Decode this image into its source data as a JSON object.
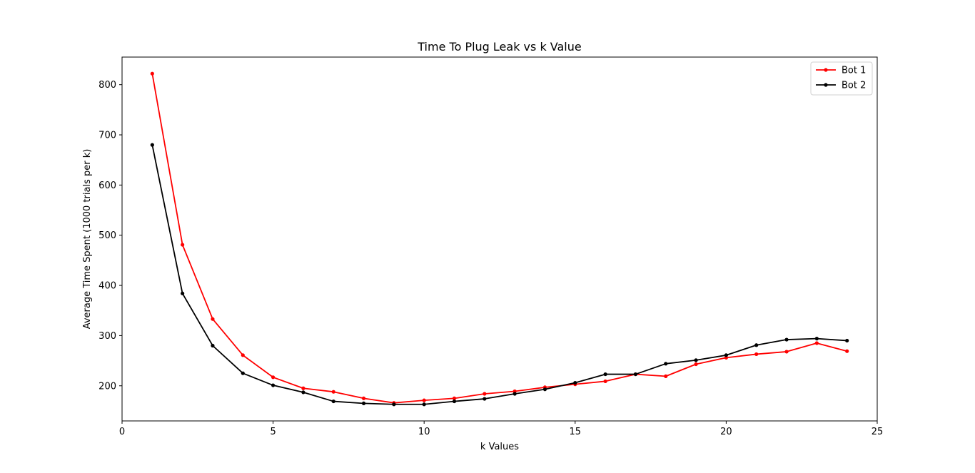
{
  "chart_data": {
    "type": "line",
    "title": "Time To Plug Leak vs k Value",
    "xlabel": "k Values",
    "ylabel": "Average Time Spent (1000 trials per k)",
    "xlim": [
      0,
      25
    ],
    "ylim": [
      130,
      855
    ],
    "xticks": [
      0,
      5,
      10,
      15,
      20,
      25
    ],
    "yticks": [
      200,
      300,
      400,
      500,
      600,
      700,
      800
    ],
    "grid": false,
    "legend_position": "top-right",
    "x": [
      1,
      2,
      3,
      4,
      5,
      6,
      7,
      8,
      9,
      10,
      11,
      12,
      13,
      14,
      15,
      16,
      17,
      18,
      19,
      20,
      21,
      22,
      23,
      24
    ],
    "series": [
      {
        "name": "Bot 1",
        "color": "#ff0000",
        "values": [
          822,
          481,
          333,
          261,
          217,
          195,
          188,
          175,
          166,
          171,
          175,
          184,
          189,
          197,
          203,
          209,
          223,
          219,
          243,
          256,
          263,
          268,
          285,
          269
        ]
      },
      {
        "name": "Bot 2",
        "color": "#000000",
        "values": [
          680,
          384,
          280,
          225,
          201,
          187,
          169,
          165,
          163,
          163,
          169,
          174,
          184,
          193,
          206,
          223,
          223,
          244,
          251,
          261,
          281,
          292,
          294,
          290
        ]
      }
    ]
  }
}
